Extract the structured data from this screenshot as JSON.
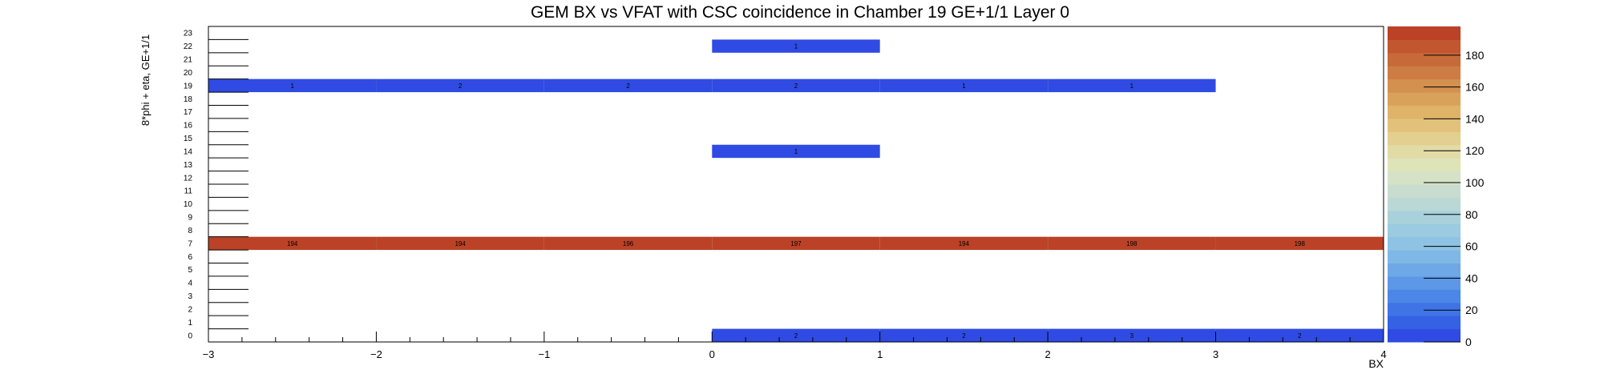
{
  "chart_data": {
    "type": "heatmap",
    "title": "GEM BX vs VFAT with CSC coincidence in Chamber 19 GE+1/1 Layer 0",
    "xlabel": "BX",
    "ylabel": "8*phi + eta, GE+1/1",
    "xlim": [
      -3,
      4
    ],
    "x_ticks": [
      "−3",
      "−2",
      "−1",
      "0",
      "1",
      "2",
      "3",
      "4"
    ],
    "y_categories": [
      "0",
      "1",
      "2",
      "3",
      "4",
      "5",
      "6",
      "7",
      "8",
      "9",
      "10",
      "11",
      "12",
      "13",
      "14",
      "15",
      "16",
      "17",
      "18",
      "19",
      "20",
      "21",
      "22",
      "23"
    ],
    "z_range": [
      0,
      198
    ],
    "z_ticks": [
      "0",
      "20",
      "40",
      "60",
      "80",
      "100",
      "120",
      "140",
      "160",
      "180"
    ],
    "cells": [
      {
        "y": 22,
        "x0": 0,
        "x1": 1,
        "value": 1,
        "label": "1"
      },
      {
        "y": 19,
        "x0": -3,
        "x1": -2,
        "value": 1,
        "label": "1"
      },
      {
        "y": 19,
        "x0": -2,
        "x1": -1,
        "value": 2,
        "label": "2"
      },
      {
        "y": 19,
        "x0": -1,
        "x1": 0,
        "value": 2,
        "label": "2"
      },
      {
        "y": 19,
        "x0": 0,
        "x1": 1,
        "value": 2,
        "label": "2"
      },
      {
        "y": 19,
        "x0": 1,
        "x1": 2,
        "value": 1,
        "label": "1"
      },
      {
        "y": 19,
        "x0": 2,
        "x1": 3,
        "value": 1,
        "label": "1"
      },
      {
        "y": 14,
        "x0": 0,
        "x1": 1,
        "value": 1,
        "label": "1"
      },
      {
        "y": 7,
        "x0": -3,
        "x1": -2,
        "value": 194,
        "label": "194"
      },
      {
        "y": 7,
        "x0": -2,
        "x1": -1,
        "value": 194,
        "label": "194"
      },
      {
        "y": 7,
        "x0": -1,
        "x1": 0,
        "value": 196,
        "label": "196"
      },
      {
        "y": 7,
        "x0": 0,
        "x1": 1,
        "value": 197,
        "label": "197"
      },
      {
        "y": 7,
        "x0": 1,
        "x1": 2,
        "value": 194,
        "label": "194"
      },
      {
        "y": 7,
        "x0": 2,
        "x1": 3,
        "value": 198,
        "label": "198"
      },
      {
        "y": 7,
        "x0": 3,
        "x1": 4,
        "value": 198,
        "label": "198"
      },
      {
        "y": 0,
        "x0": 0,
        "x1": 1,
        "value": 2,
        "label": "2"
      },
      {
        "y": 0,
        "x0": 1,
        "x1": 2,
        "value": 2,
        "label": "2"
      },
      {
        "y": 0,
        "x0": 2,
        "x1": 3,
        "value": 3,
        "label": "3"
      },
      {
        "y": 0,
        "x0": 3,
        "x1": 4,
        "value": 2,
        "label": "2"
      }
    ],
    "palette": [
      "#2f4be3",
      "#3561e4",
      "#3f74e6",
      "#4c86e6",
      "#5d97e8",
      "#6ea8e6",
      "#7fb7e6",
      "#8ec3e3",
      "#9bcbe0",
      "#a9d1db",
      "#b9d8d6",
      "#c8ddcf",
      "#d6e2c6",
      "#dfe3b8",
      "#e2dba6",
      "#e3cf90",
      "#e2c27b",
      "#dfb368",
      "#d9a25a",
      "#d4904f",
      "#cd7c43",
      "#c76a39",
      "#c1562f",
      "#bb4226"
    ],
    "grid": false
  }
}
